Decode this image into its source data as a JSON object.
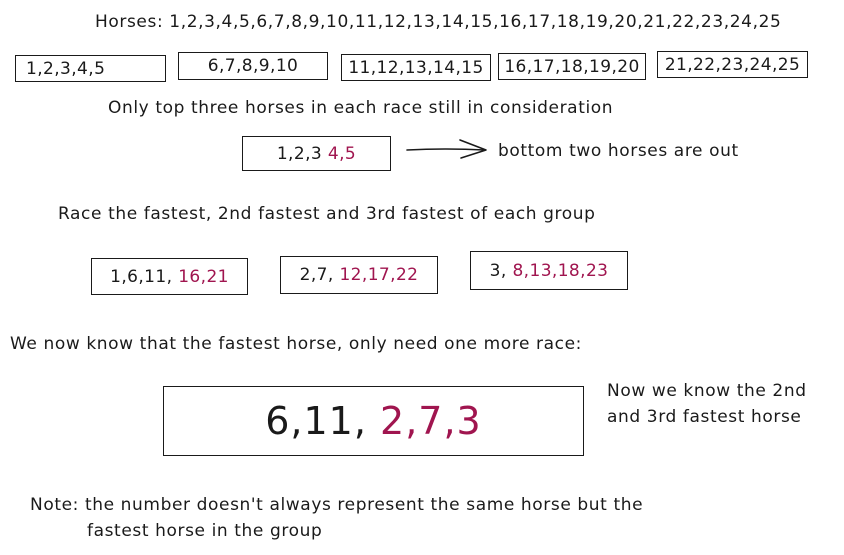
{
  "horses_line": "Horses: 1,2,3,4,5,6,7,8,9,10,11,12,13,14,15,16,17,18,19,20,21,22,23,24,25",
  "groups": [
    "1,2,3,4,5",
    "6,7,8,9,10",
    "11,12,13,14,15",
    "16,17,18,19,20",
    "21,22,23,24,25"
  ],
  "top_three_note": "Only top three horses in each race still in consideration",
  "top_three_box": {
    "keep": "1,2,3",
    "out": "4,5"
  },
  "bottom_out_note": "bottom two horses are out",
  "race_note": "Race the fastest, 2nd fastest and 3rd fastest of each group",
  "rank_races": [
    {
      "keep": "1,6,11,",
      "out": "16,21"
    },
    {
      "keep": "2,7,",
      "out": "12,17,22"
    },
    {
      "keep": "3,",
      "out": "8,13,18,23"
    }
  ],
  "fastest_note": "We now know that the fastest horse, only need one more race:",
  "final_race": {
    "keep": "6,11,",
    "candidates": "2,7,3"
  },
  "result_note": [
    "Now we know the 2nd",
    "and 3rd fastest horse"
  ],
  "footnote": [
    "Note: the number doesn't always represent the same horse but the",
    "fastest horse in the group"
  ],
  "colors": {
    "ink": "#1a1a1a",
    "eliminated": "#a0154f"
  }
}
